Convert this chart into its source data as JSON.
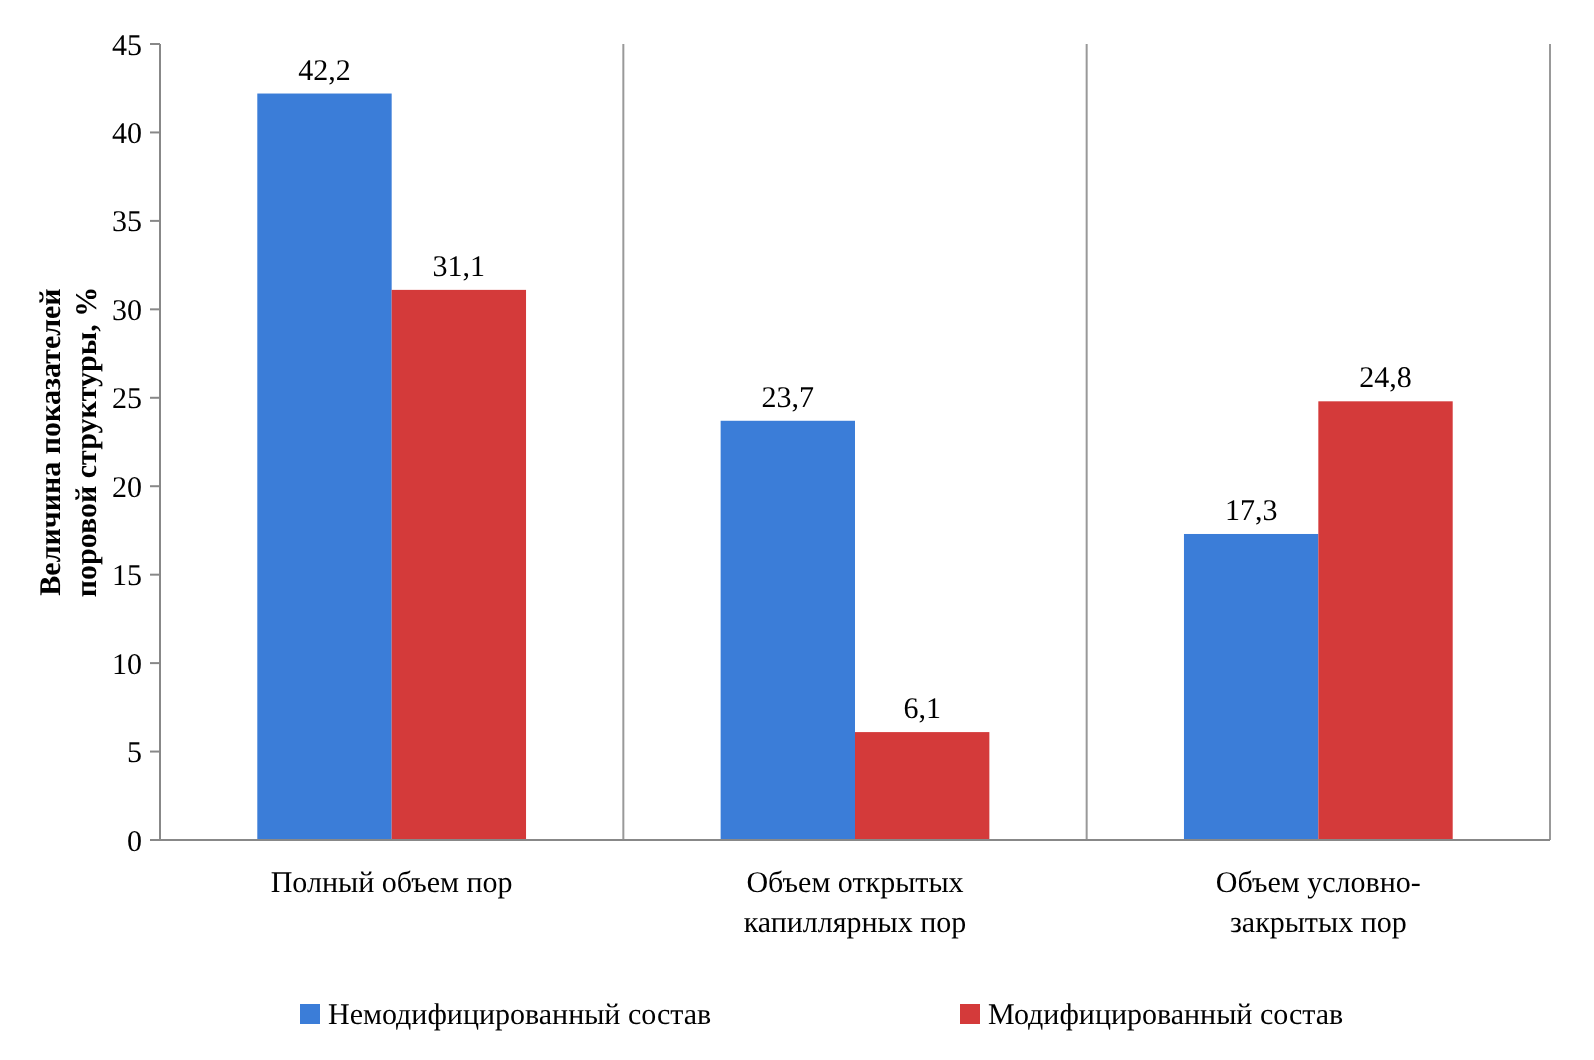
{
  "chart_data": {
    "type": "bar",
    "ylabel": "Величина показателей поровой структуры, %",
    "categories": [
      "Полный объем пор",
      "Объем открытых капиллярных пор",
      "Объем условно-закрытых пор"
    ],
    "series": [
      {
        "name": "Немодифицированный состав",
        "color": "#3b7dd8",
        "values": [
          42.2,
          23.7,
          17.3
        ],
        "value_labels": [
          "42,2",
          "23,7",
          "17,3"
        ]
      },
      {
        "name": "Модифицированный состав",
        "color": "#d43a3a",
        "values": [
          31.1,
          6.1,
          24.8
        ],
        "value_labels": [
          "31,1",
          "6,1",
          "24,8"
        ]
      }
    ],
    "ylim": [
      0,
      45
    ],
    "yticks": [
      0,
      5,
      10,
      15,
      20,
      25,
      30,
      35,
      40,
      45
    ],
    "grid": false,
    "legend": "bottom"
  }
}
